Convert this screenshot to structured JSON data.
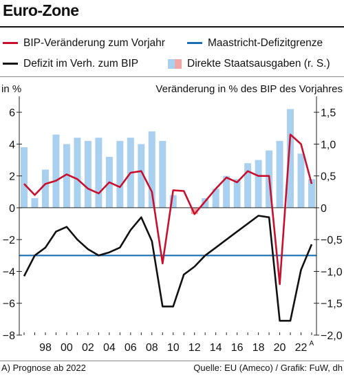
{
  "title": "Euro-Zone",
  "legend": {
    "gdp": "BIP-Veränderung zum Vorjahr",
    "maastricht": "Maastricht-Defizitgrenze",
    "deficit": "Defizit im Verh. zum BIP",
    "spending": "Direkte Staatsausgaben (r. S.)"
  },
  "colors": {
    "gdp": "#c8102e",
    "maastricht": "#1a6fb4",
    "deficit": "#111111",
    "spending_positive": "#aad0ef",
    "spending_negative": "#f2a7a7",
    "zero_line": "#222222"
  },
  "left_axis_unit": "in %",
  "right_axis_unit": "Veränderung in % des BIP des Vorjahres",
  "footnote": "A) Prognose ab 2022",
  "source": "Quelle: EU (Ameco) / Grafik: FuW, dh",
  "chart_data": {
    "type": "line",
    "x": [
      1996,
      1997,
      1998,
      1999,
      2000,
      2001,
      2002,
      2003,
      2004,
      2005,
      2006,
      2007,
      2008,
      2009,
      2010,
      2011,
      2012,
      2013,
      2014,
      2015,
      2016,
      2017,
      2018,
      2019,
      2020,
      2021,
      2022,
      2023
    ],
    "x_tick_labels": [
      {
        "year": 1998,
        "label": "98"
      },
      {
        "year": 2000,
        "label": "00"
      },
      {
        "year": 2002,
        "label": "02"
      },
      {
        "year": 2004,
        "label": "04"
      },
      {
        "year": 2006,
        "label": "06"
      },
      {
        "year": 2008,
        "label": "08"
      },
      {
        "year": 2010,
        "label": "10"
      },
      {
        "year": 2012,
        "label": "12"
      },
      {
        "year": 2014,
        "label": "14"
      },
      {
        "year": 2016,
        "label": "16"
      },
      {
        "year": 2018,
        "label": "18"
      },
      {
        "year": 2020,
        "label": "20"
      },
      {
        "year": 2022,
        "label": "22",
        "superscript": "A"
      }
    ],
    "y_left": {
      "range": [
        -8,
        7
      ],
      "ticks": [
        6,
        4,
        2,
        0,
        -2,
        -4,
        -6,
        -8
      ],
      "tick_labels": [
        "6",
        "4",
        "2",
        "0",
        "−2",
        "−4",
        "−6",
        "−8"
      ]
    },
    "y_right": {
      "range": [
        -2.0,
        1.75
      ],
      "ticks": [
        1.5,
        1.0,
        0.5,
        0,
        -0.5,
        -1.0,
        -1.5,
        -2.0
      ],
      "tick_labels": [
        "1,5",
        "1,0",
        "0,5",
        "0",
        "−0,5",
        "−1,0",
        "−1,5",
        "−2,0"
      ]
    },
    "gdp_growth": [
      1.5,
      0.8,
      1.5,
      1.7,
      2.1,
      1.8,
      1.2,
      0.9,
      1.6,
      1.3,
      2.2,
      2.3,
      1.0,
      -3.5,
      1.1,
      1.05,
      -0.4,
      0.4,
      1.2,
      1.9,
      1.6,
      2.3,
      2.0,
      2.0,
      -4.8,
      4.6,
      4.0,
      1.5
    ],
    "deficit": [
      -4.3,
      -3.0,
      -2.5,
      -1.5,
      -1.2,
      -2.0,
      -2.6,
      -3.0,
      -2.8,
      -2.5,
      -1.4,
      -0.6,
      -2.1,
      -6.2,
      -6.2,
      -4.2,
      -3.7,
      -3.0,
      -2.5,
      -2.0,
      -1.5,
      -1.0,
      -0.5,
      -0.6,
      -7.1,
      -7.1,
      -3.9,
      -2.3
    ],
    "direct_spending": [
      0.95,
      0.15,
      0.6,
      1.15,
      1.0,
      1.1,
      1.05,
      1.1,
      0.8,
      1.05,
      1.1,
      1.0,
      1.2,
      1.05,
      0.2,
      0.0,
      -0.1,
      0.15,
      0.3,
      0.5,
      0.45,
      0.7,
      0.75,
      0.9,
      1.05,
      1.55,
      0.85,
      0.45
    ],
    "maastricht_limit": -3,
    "grid": false
  }
}
